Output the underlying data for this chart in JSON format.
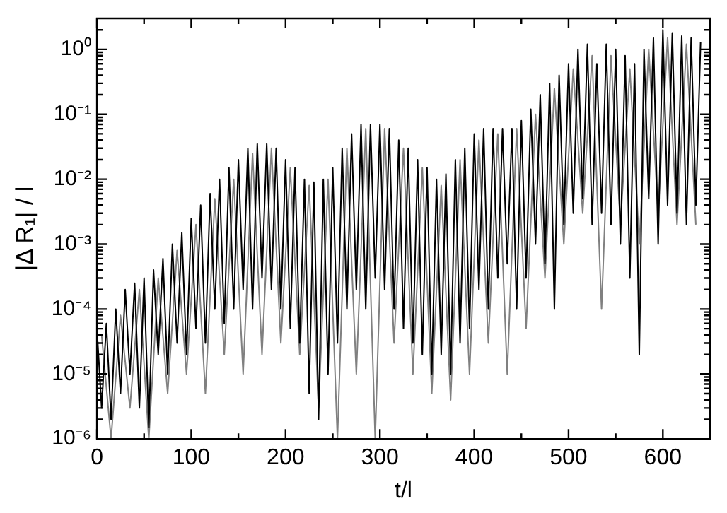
{
  "chart_data": {
    "type": "line",
    "xlabel": "t/l",
    "ylabel": "|Δ R₁| / l",
    "log": "y",
    "grid": false,
    "legend": false,
    "xlim": [
      0,
      650
    ],
    "ylim": [
      1e-06,
      3
    ],
    "xticks": [
      0,
      {
        "value": 50,
        "label": null
      },
      100,
      {
        "value": 150,
        "label": null
      },
      200,
      {
        "value": 250,
        "label": null
      },
      300,
      {
        "value": 350,
        "label": null
      },
      400,
      {
        "value": 450,
        "label": null
      },
      500,
      {
        "value": 550,
        "label": null
      },
      600
    ],
    "yticks": [
      {
        "value": 1e-06,
        "label": "10⁻⁶"
      },
      {
        "value": 2e-06,
        "label": null
      },
      {
        "value": 3e-06,
        "label": null
      },
      {
        "value": 4e-06,
        "label": null
      },
      {
        "value": 5e-06,
        "label": null
      },
      {
        "value": 6e-06,
        "label": null
      },
      {
        "value": 7e-06,
        "label": null
      },
      {
        "value": 8e-06,
        "label": null
      },
      {
        "value": 9e-06,
        "label": null
      },
      {
        "value": 1e-05,
        "label": "10⁻⁵"
      },
      {
        "value": 2e-05,
        "label": null
      },
      {
        "value": 3e-05,
        "label": null
      },
      {
        "value": 4e-05,
        "label": null
      },
      {
        "value": 5e-05,
        "label": null
      },
      {
        "value": 6e-05,
        "label": null
      },
      {
        "value": 7e-05,
        "label": null
      },
      {
        "value": 8e-05,
        "label": null
      },
      {
        "value": 9e-05,
        "label": null
      },
      {
        "value": 0.0001,
        "label": "10⁻⁴"
      },
      {
        "value": 0.0002,
        "label": null
      },
      {
        "value": 0.0003,
        "label": null
      },
      {
        "value": 0.0004,
        "label": null
      },
      {
        "value": 0.0005,
        "label": null
      },
      {
        "value": 0.0006,
        "label": null
      },
      {
        "value": 0.0007,
        "label": null
      },
      {
        "value": 0.0008,
        "label": null
      },
      {
        "value": 0.0009,
        "label": null
      },
      {
        "value": 0.001,
        "label": "10⁻³"
      },
      {
        "value": 0.002,
        "label": null
      },
      {
        "value": 0.003,
        "label": null
      },
      {
        "value": 0.004,
        "label": null
      },
      {
        "value": 0.005,
        "label": null
      },
      {
        "value": 0.006,
        "label": null
      },
      {
        "value": 0.007,
        "label": null
      },
      {
        "value": 0.008,
        "label": null
      },
      {
        "value": 0.009,
        "label": null
      },
      {
        "value": 0.01,
        "label": "10⁻²"
      },
      {
        "value": 0.02,
        "label": null
      },
      {
        "value": 0.03,
        "label": null
      },
      {
        "value": 0.04,
        "label": null
      },
      {
        "value": 0.05,
        "label": null
      },
      {
        "value": 0.06,
        "label": null
      },
      {
        "value": 0.07,
        "label": null
      },
      {
        "value": 0.08,
        "label": null
      },
      {
        "value": 0.09,
        "label": null
      },
      {
        "value": 0.1,
        "label": "10⁻¹"
      },
      {
        "value": 0.2,
        "label": null
      },
      {
        "value": 0.3,
        "label": null
      },
      {
        "value": 0.4,
        "label": null
      },
      {
        "value": 0.5,
        "label": null
      },
      {
        "value": 0.6,
        "label": null
      },
      {
        "value": 0.7,
        "label": null
      },
      {
        "value": 0.8,
        "label": null
      },
      {
        "value": 0.9,
        "label": null
      },
      {
        "value": 1,
        "label": "10⁰"
      },
      {
        "value": 2,
        "label": null
      }
    ],
    "series": [
      {
        "color": "#000000",
        "x": [
          0,
          5,
          10,
          15,
          20,
          25,
          30,
          35,
          40,
          45,
          50,
          55,
          60,
          65,
          70,
          75,
          80,
          85,
          90,
          95,
          100,
          105,
          110,
          115,
          120,
          125,
          130,
          135,
          140,
          145,
          150,
          155,
          160,
          165,
          170,
          175,
          180,
          185,
          190,
          195,
          200,
          205,
          210,
          215,
          220,
          225,
          230,
          235,
          240,
          245,
          250,
          255,
          260,
          265,
          270,
          275,
          280,
          285,
          290,
          295,
          300,
          305,
          310,
          315,
          320,
          325,
          330,
          335,
          340,
          345,
          350,
          355,
          360,
          365,
          370,
          375,
          380,
          385,
          390,
          395,
          400,
          405,
          410,
          415,
          420,
          425,
          430,
          435,
          440,
          445,
          450,
          455,
          460,
          465,
          470,
          475,
          480,
          485,
          490,
          495,
          500,
          505,
          510,
          515,
          520,
          525,
          530,
          535,
          540,
          545,
          550,
          555,
          560,
          565,
          570,
          575,
          580,
          585,
          590,
          595,
          600,
          605,
          610,
          615,
          620,
          625,
          630,
          635,
          640
        ],
        "values": [
          5e-05,
          3e-06,
          6e-05,
          2e-06,
          0.0001,
          5e-06,
          0.0002,
          1e-05,
          0.00025,
          3e-06,
          0.0003,
          1.5e-06,
          0.0004,
          2e-05,
          0.0006,
          1e-05,
          0.001,
          3e-05,
          0.0015,
          2e-05,
          0.0025,
          5e-05,
          0.004,
          3e-05,
          0.006,
          0.0001,
          0.01,
          6e-05,
          0.015,
          0.0001,
          0.02,
          0.0002,
          0.03,
          0.0001,
          0.035,
          0.0003,
          0.035,
          0.0002,
          0.03,
          0.0001,
          0.02,
          5e-05,
          0.015,
          3e-05,
          0.01,
          5e-06,
          0.009,
          2e-06,
          0.01,
          1e-05,
          0.015,
          3e-05,
          0.03,
          0.0001,
          0.05,
          0.0002,
          0.07,
          0.0001,
          0.07,
          0.0003,
          0.07,
          0.0002,
          0.06,
          0.0001,
          0.04,
          5e-05,
          0.03,
          3e-05,
          0.02,
          2e-05,
          0.015,
          1e-05,
          0.01,
          2e-05,
          0.012,
          1e-05,
          0.02,
          3e-05,
          0.03,
          5e-05,
          0.05,
          0.0002,
          0.06,
          0.0001,
          0.06,
          0.0003,
          0.06,
          0.0005,
          0.06,
          0.0001,
          0.08,
          0.0003,
          0.12,
          0.001,
          0.2,
          0.0005,
          0.3,
          0.0001,
          0.4,
          0.002,
          0.6,
          0.003,
          1,
          0.005,
          1.2,
          0.002,
          0.6,
          0.003,
          1.2,
          0.002,
          1,
          0.001,
          0.8,
          0.0003,
          0.6,
          2e-05,
          1,
          0.005,
          1.5,
          0.001,
          2,
          0.004,
          1.8,
          0.003,
          1.6,
          0.002,
          1.5,
          0.004,
          1.3
        ]
      },
      {
        "color": "#808080",
        "x": [
          5,
          15,
          25,
          35,
          45,
          55,
          65,
          75,
          85,
          95,
          105,
          115,
          125,
          135,
          145,
          155,
          165,
          175,
          185,
          195,
          205,
          215,
          225,
          235,
          245,
          255,
          265,
          275,
          285,
          295,
          305,
          315,
          325,
          335,
          345,
          355,
          365,
          375,
          385,
          395,
          405,
          415,
          425,
          435,
          445,
          455,
          465,
          475,
          485,
          495,
          505,
          515,
          525,
          535,
          545,
          555,
          565,
          575,
          585,
          595,
          605,
          615,
          625,
          635
        ],
        "values": [
          4e-05,
          1e-06,
          8e-05,
          3e-06,
          0.0002,
          1e-06,
          0.0003,
          5e-06,
          0.0008,
          1e-05,
          0.002,
          5e-06,
          0.005,
          2e-05,
          0.01,
          1e-05,
          0.025,
          2e-05,
          0.03,
          3e-05,
          0.015,
          2e-05,
          0.008,
          3e-06,
          0.01,
          1e-06,
          0.03,
          1e-05,
          0.06,
          1e-06,
          0.06,
          3e-05,
          0.03,
          1e-05,
          0.015,
          5e-06,
          0.008,
          4e-06,
          0.02,
          1e-05,
          0.04,
          3e-05,
          0.05,
          1e-05,
          0.06,
          5e-05,
          0.1,
          0.0003,
          0.25,
          0.001,
          0.5,
          0.003,
          0.8,
          0.0001,
          0.8,
          0.002,
          0.5,
          0.001,
          1,
          0.003,
          1.5,
          0.002,
          1.2,
          0.002
        ]
      }
    ]
  }
}
